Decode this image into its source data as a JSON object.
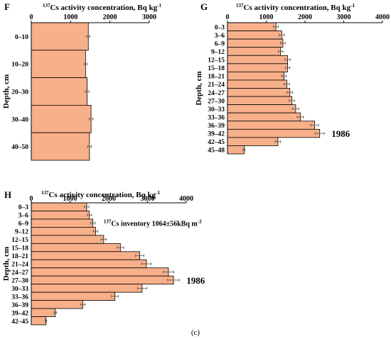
{
  "caption": "(c)",
  "chart_data": [
    {
      "panel": "F",
      "type": "bar",
      "orientation": "horizontal",
      "x_title": "Cs activity concentration, Bq kg",
      "x_title_sup_pre": "137",
      "x_title_sup_post": "-1",
      "ylabel": "Depth, cm",
      "xlim": [
        0,
        3000
      ],
      "xticks": [
        0,
        1000,
        2000,
        3000
      ],
      "categories": [
        "0–10",
        "10–20",
        "20–30",
        "30–40",
        "40–50"
      ],
      "values": [
        1450,
        1380,
        1420,
        1520,
        1480
      ],
      "errors": [
        40,
        40,
        50,
        50,
        50
      ],
      "bar_color": "#f7b08a",
      "annotations": []
    },
    {
      "panel": "G",
      "type": "bar",
      "orientation": "horizontal",
      "x_title": "Cs activity concentration, Bq kg",
      "x_title_sup_pre": "137",
      "x_title_sup_post": "-1",
      "ylabel": "Depth, cm",
      "xlim": [
        0,
        4000
      ],
      "xticks": [
        0,
        1000,
        2000,
        3000,
        4000
      ],
      "categories": [
        "0–3",
        "3–6",
        "6–9",
        "9–12",
        "12–15",
        "15–18",
        "18–21",
        "21–24",
        "24–27",
        "27–30",
        "30–33",
        "33–36",
        "36–39",
        "39–42",
        "42–45",
        "45–48"
      ],
      "values": [
        1250,
        1400,
        1430,
        1370,
        1550,
        1550,
        1460,
        1530,
        1610,
        1660,
        1760,
        1880,
        2250,
        2380,
        1300,
        430
      ],
      "errors": [
        60,
        70,
        60,
        60,
        70,
        60,
        60,
        70,
        70,
        70,
        80,
        80,
        100,
        120,
        70,
        30
      ],
      "bar_color": "#f7b08a",
      "annotations": [
        {
          "text": "1986",
          "category": "39–42"
        }
      ]
    },
    {
      "panel": "H",
      "type": "bar",
      "orientation": "horizontal",
      "x_title": "Cs activity concentration, Bq kg",
      "x_title_sup_pre": "137",
      "x_title_sup_post": "-1",
      "ylabel": "Depth, cm",
      "xlim": [
        0,
        4000
      ],
      "xticks": [
        0,
        1000,
        2000,
        3000,
        4000
      ],
      "categories": [
        "0–3",
        "3–6",
        "6–9",
        "9–12",
        "12–15",
        "15–18",
        "18–21",
        "21–24",
        "24–27",
        "27–30",
        "30–33",
        "33–36",
        "36–39",
        "39–42",
        "42–45"
      ],
      "values": [
        1430,
        1500,
        1590,
        1660,
        1870,
        2300,
        2800,
        2970,
        3540,
        3670,
        2860,
        2160,
        1330,
        620,
        380
      ],
      "errors": [
        60,
        60,
        60,
        60,
        70,
        90,
        110,
        120,
        140,
        150,
        120,
        90,
        60,
        30,
        20
      ],
      "bar_color": "#f7b08a",
      "annotations": [
        {
          "text": "1986",
          "category": "27–30"
        },
        {
          "text": "Cs inventory 1064±56kBq m",
          "sup_pre": "137",
          "sup_post": "-2",
          "category": "6–9"
        }
      ]
    }
  ]
}
